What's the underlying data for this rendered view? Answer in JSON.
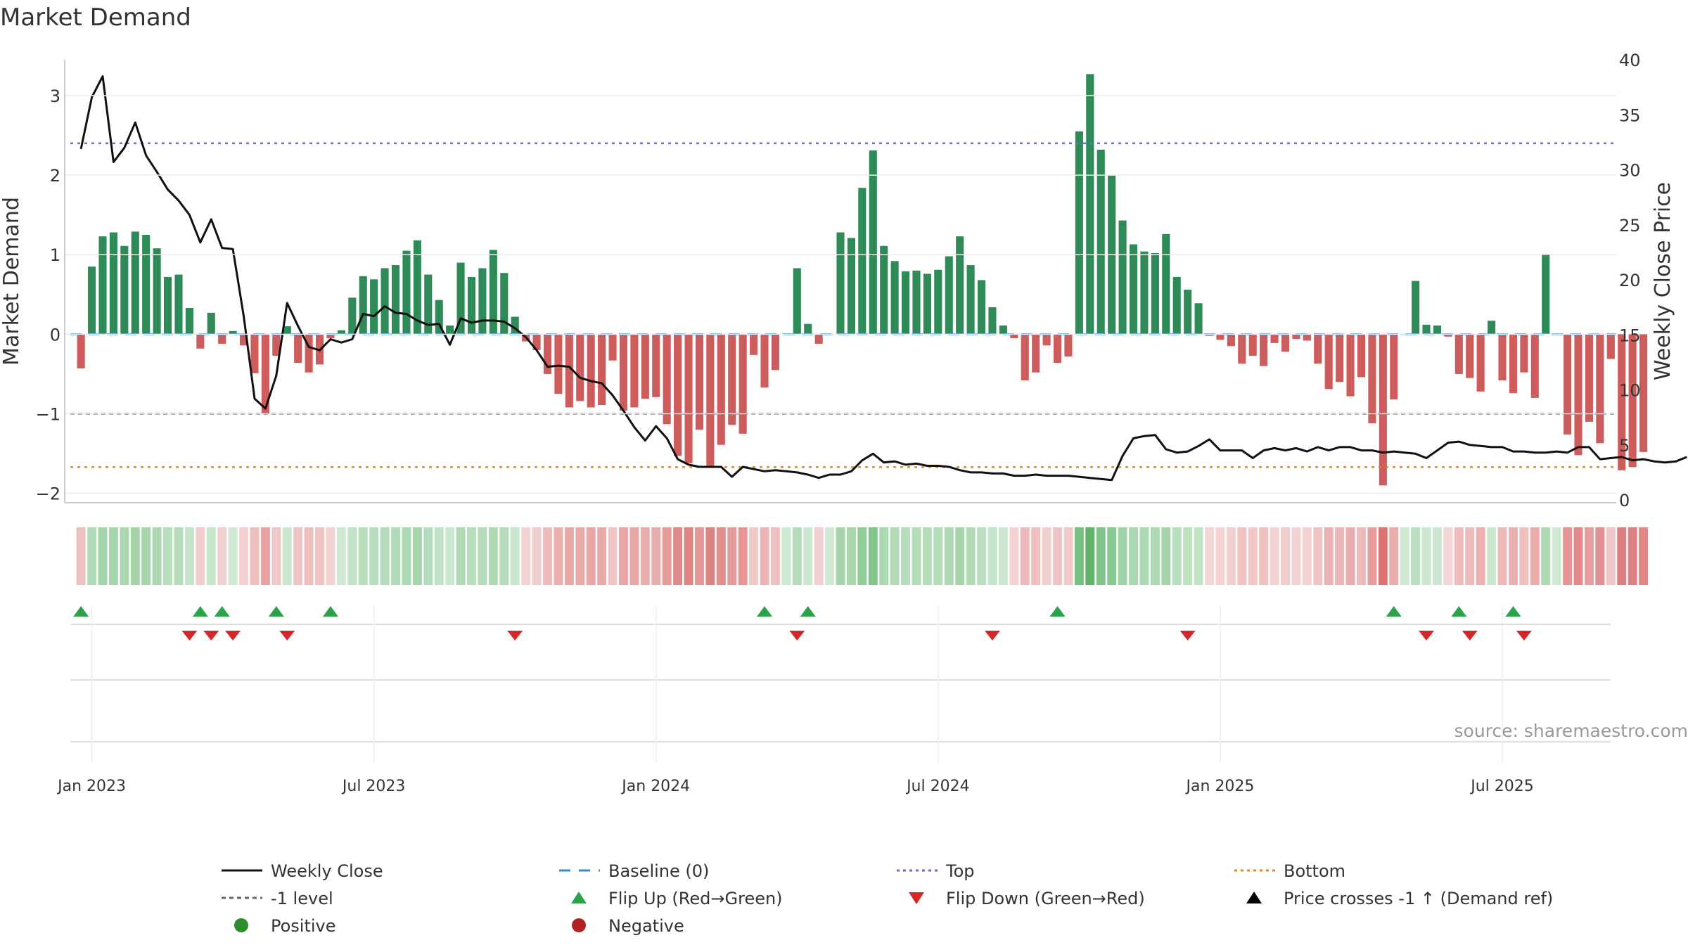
{
  "chart_data": {
    "type": "bar",
    "title": "Market Demand",
    "ylabel": "Market Demand",
    "y2label": "Weekly Close Price",
    "ylim": [
      -2.1,
      3.45
    ],
    "y2lim": [
      0,
      40
    ],
    "yticks": [
      3,
      2,
      1,
      0,
      -1,
      -2
    ],
    "ytick_labels": [
      "3",
      "2",
      "1",
      "0",
      "−1",
      "−2"
    ],
    "y2ticks": [
      40,
      35,
      30,
      25,
      20,
      15,
      10,
      5,
      0
    ],
    "x_start": "2022-12-26",
    "x_range_weeks": [
      -1.5,
      141.5
    ],
    "xticks": [
      {
        "label": "Jan 2023",
        "week": 1
      },
      {
        "label": "Jul 2023",
        "week": 27
      },
      {
        "label": "Jan 2024",
        "week": 53
      },
      {
        "label": "Jul 2024",
        "week": 79
      },
      {
        "label": "Jan 2025",
        "week": 105
      },
      {
        "label": "Jul 2025",
        "week": 131
      }
    ],
    "series": [
      {
        "name": "Market Demand",
        "type": "bar",
        "values": [
          -0.43,
          0.85,
          1.23,
          1.28,
          1.11,
          1.29,
          1.25,
          1.08,
          0.72,
          0.75,
          0.33,
          -0.18,
          0.27,
          -0.12,
          0.04,
          -0.14,
          -0.49,
          -1.0,
          -0.27,
          0.1,
          -0.36,
          -0.48,
          -0.38,
          -0.05,
          0.05,
          0.46,
          0.73,
          0.69,
          0.83,
          0.87,
          1.05,
          1.18,
          0.75,
          0.43,
          0.11,
          0.9,
          0.72,
          0.83,
          1.06,
          0.77,
          0.22,
          -0.09,
          -0.2,
          -0.5,
          -0.75,
          -0.92,
          -0.84,
          -0.92,
          -0.89,
          -0.33,
          -0.96,
          -0.92,
          -0.81,
          -0.79,
          -1.13,
          -1.53,
          -1.62,
          -1.2,
          -1.66,
          -1.39,
          -1.14,
          -1.25,
          -0.26,
          -0.67,
          -0.45,
          0.01,
          0.83,
          0.13,
          -0.12,
          0.0,
          1.28,
          1.21,
          1.84,
          2.31,
          1.11,
          0.92,
          0.79,
          0.8,
          0.76,
          0.81,
          0.98,
          1.23,
          0.87,
          0.68,
          0.34,
          0.11,
          -0.05,
          -0.58,
          -0.48,
          -0.14,
          -0.36,
          -0.28,
          2.55,
          3.27,
          2.32,
          2.0,
          1.43,
          1.13,
          1.04,
          1.02,
          1.26,
          0.72,
          0.56,
          0.39,
          -0.02,
          -0.07,
          -0.15,
          -0.37,
          -0.27,
          -0.4,
          -0.11,
          -0.22,
          -0.06,
          -0.08,
          -0.37,
          -0.69,
          -0.6,
          -0.78,
          -0.54,
          -1.12,
          -1.9,
          -0.82,
          0.0,
          0.67,
          0.12,
          0.11,
          -0.03,
          -0.5,
          -0.55,
          -0.72,
          0.17,
          -0.58,
          -0.74,
          -0.48,
          -0.8,
          1.01,
          0.0,
          -1.26,
          -1.52,
          -1.1,
          -1.37,
          -0.31,
          -1.71,
          -1.67,
          -1.48
        ]
      },
      {
        "name": "Weekly Close",
        "type": "line",
        "axis": "right",
        "color": "#111111",
        "values": [
          31.9,
          36.6,
          38.5,
          30.7,
          32.0,
          34.3,
          31.3,
          29.8,
          28.2,
          27.2,
          25.9,
          23.4,
          25.5,
          22.9,
          22.8,
          16.7,
          9.2,
          8.3,
          11.3,
          17.9,
          15.8,
          13.9,
          13.6,
          14.6,
          14.3,
          14.6,
          16.9,
          16.7,
          17.6,
          17.0,
          16.9,
          16.3,
          15.9,
          16.0,
          14.1,
          16.5,
          16.1,
          16.3,
          16.3,
          16.2,
          15.6,
          14.8,
          13.6,
          12.1,
          12.2,
          12.1,
          11.1,
          10.8,
          10.6,
          9.5,
          8.1,
          6.6,
          5.4,
          6.7,
          5.6,
          3.7,
          3.2,
          3.0,
          3.0,
          3.0,
          2.1,
          3.0,
          2.8,
          2.6,
          2.7,
          2.6,
          2.5,
          2.3,
          2.0,
          2.3,
          2.3,
          2.6,
          3.6,
          4.2,
          3.4,
          3.5,
          3.2,
          3.3,
          3.1,
          3.1,
          3.0,
          2.7,
          2.5,
          2.5,
          2.4,
          2.4,
          2.2,
          2.2,
          2.3,
          2.2,
          2.2,
          2.2,
          2.1,
          2.0,
          1.9,
          1.8,
          4.0,
          5.6,
          5.8,
          5.9,
          4.6,
          4.3,
          4.4,
          4.9,
          5.5,
          4.5,
          4.5,
          4.5,
          3.8,
          4.5,
          4.7,
          4.5,
          4.7,
          4.4,
          4.8,
          4.5,
          4.8,
          4.8,
          4.5,
          4.5,
          4.3,
          4.4,
          4.3,
          4.2,
          3.8,
          4.5,
          5.2,
          5.3,
          5.0,
          4.9,
          4.8,
          4.8,
          4.4,
          4.4,
          4.3,
          4.3,
          4.4,
          4.3,
          4.8,
          4.8,
          3.7,
          3.8,
          3.9,
          3.6,
          3.7,
          3.5,
          3.4,
          3.5,
          3.9
        ]
      }
    ],
    "reference_lines": [
      {
        "name": "Top",
        "axis": "left",
        "value": 2.4,
        "color": "#6b6bd0",
        "style": "dotted"
      },
      {
        "name": "-1 level",
        "axis": "left",
        "value": -1,
        "color": "#666666",
        "style": "dashed-dot"
      },
      {
        "name": "Bottom",
        "axis": "left",
        "value": -1.67,
        "color": "#e08a1e",
        "style": "dotted"
      },
      {
        "name": "Baseline (0)",
        "axis": "left",
        "value": 0,
        "color": "#3a86c8",
        "style": "dashed"
      }
    ],
    "flip_up_weeks": [
      0,
      11,
      13,
      18,
      23,
      63,
      67,
      90,
      121,
      127,
      132
    ],
    "flip_down_weeks": [
      10,
      12,
      14,
      19,
      40,
      66,
      84,
      102,
      124,
      128,
      133
    ],
    "colors": {
      "positive_bar": "#2e8b57",
      "negative_bar": "#cd5c5c",
      "flip_up": "#2ca24a",
      "flip_down": "#d62728",
      "price": "#111111",
      "heat_positive": "#44a851",
      "heat_negative": "#d65c5c"
    },
    "legend": [
      {
        "label": "Weekly Close",
        "marker": "solid-line",
        "color": "#111111"
      },
      {
        "label": "Baseline (0)",
        "marker": "dashed-line",
        "color": "#3a86c8"
      },
      {
        "label": "Top",
        "marker": "dotted-line",
        "color": "#6b6bd0"
      },
      {
        "label": "Bottom",
        "marker": "dotted-line",
        "color": "#e08a1e"
      },
      {
        "label": "-1 level",
        "marker": "dashdot-line",
        "color": "#666666"
      },
      {
        "label": "Flip Up (Red→Green)",
        "marker": "triangle-up",
        "color": "#2ca24a"
      },
      {
        "label": "Flip Down (Green→Red)",
        "marker": "triangle-down",
        "color": "#d62728"
      },
      {
        "label": "Price crosses -1 ↑ (Demand ref)",
        "marker": "triangle-up",
        "color": "#000000"
      },
      {
        "label": "Positive",
        "marker": "circle",
        "color": "#2e8b2e"
      },
      {
        "label": "Negative",
        "marker": "circle",
        "color": "#b22222"
      }
    ],
    "legend_placement": "bottom",
    "source": "source: sharemaestro.com"
  }
}
